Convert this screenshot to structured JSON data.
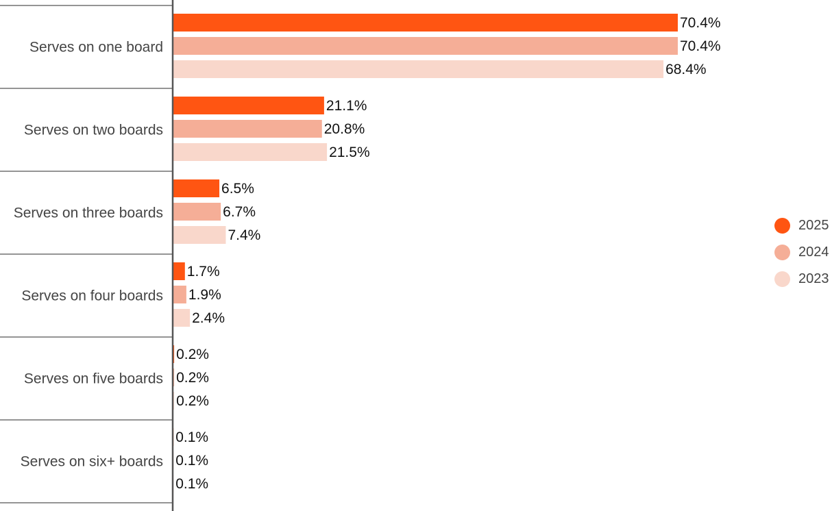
{
  "chart_data": {
    "type": "bar",
    "orientation": "horizontal",
    "categories": [
      "Serves on one board",
      "Serves on two boards",
      "Serves on three boards",
      "Serves on four boards",
      "Serves on five boards",
      "Serves on six+ boards"
    ],
    "series": [
      {
        "name": "2025",
        "color": "#FF5512",
        "values": [
          70.4,
          21.1,
          6.5,
          1.7,
          0.2,
          0.1
        ]
      },
      {
        "name": "2024",
        "color": "#F5AE97",
        "values": [
          70.4,
          20.8,
          6.7,
          1.9,
          0.2,
          0.1
        ]
      },
      {
        "name": "2023",
        "color": "#F9D7CB",
        "values": [
          68.4,
          21.5,
          7.4,
          2.4,
          0.2,
          0.1
        ]
      }
    ],
    "value_labels": [
      [
        "70.4%",
        "21.1%",
        "6.5%",
        "1.7%",
        "0.2%",
        "0.1%"
      ],
      [
        "70.4%",
        "20.8%",
        "6.7%",
        "1.9%",
        "0.2%",
        "0.1%"
      ],
      [
        "68.4%",
        "21.5%",
        "7.4%",
        "2.4%",
        "0.2%",
        "0.1%"
      ]
    ],
    "xlim": [
      0,
      80
    ],
    "legend_position": "right",
    "grid": false
  }
}
